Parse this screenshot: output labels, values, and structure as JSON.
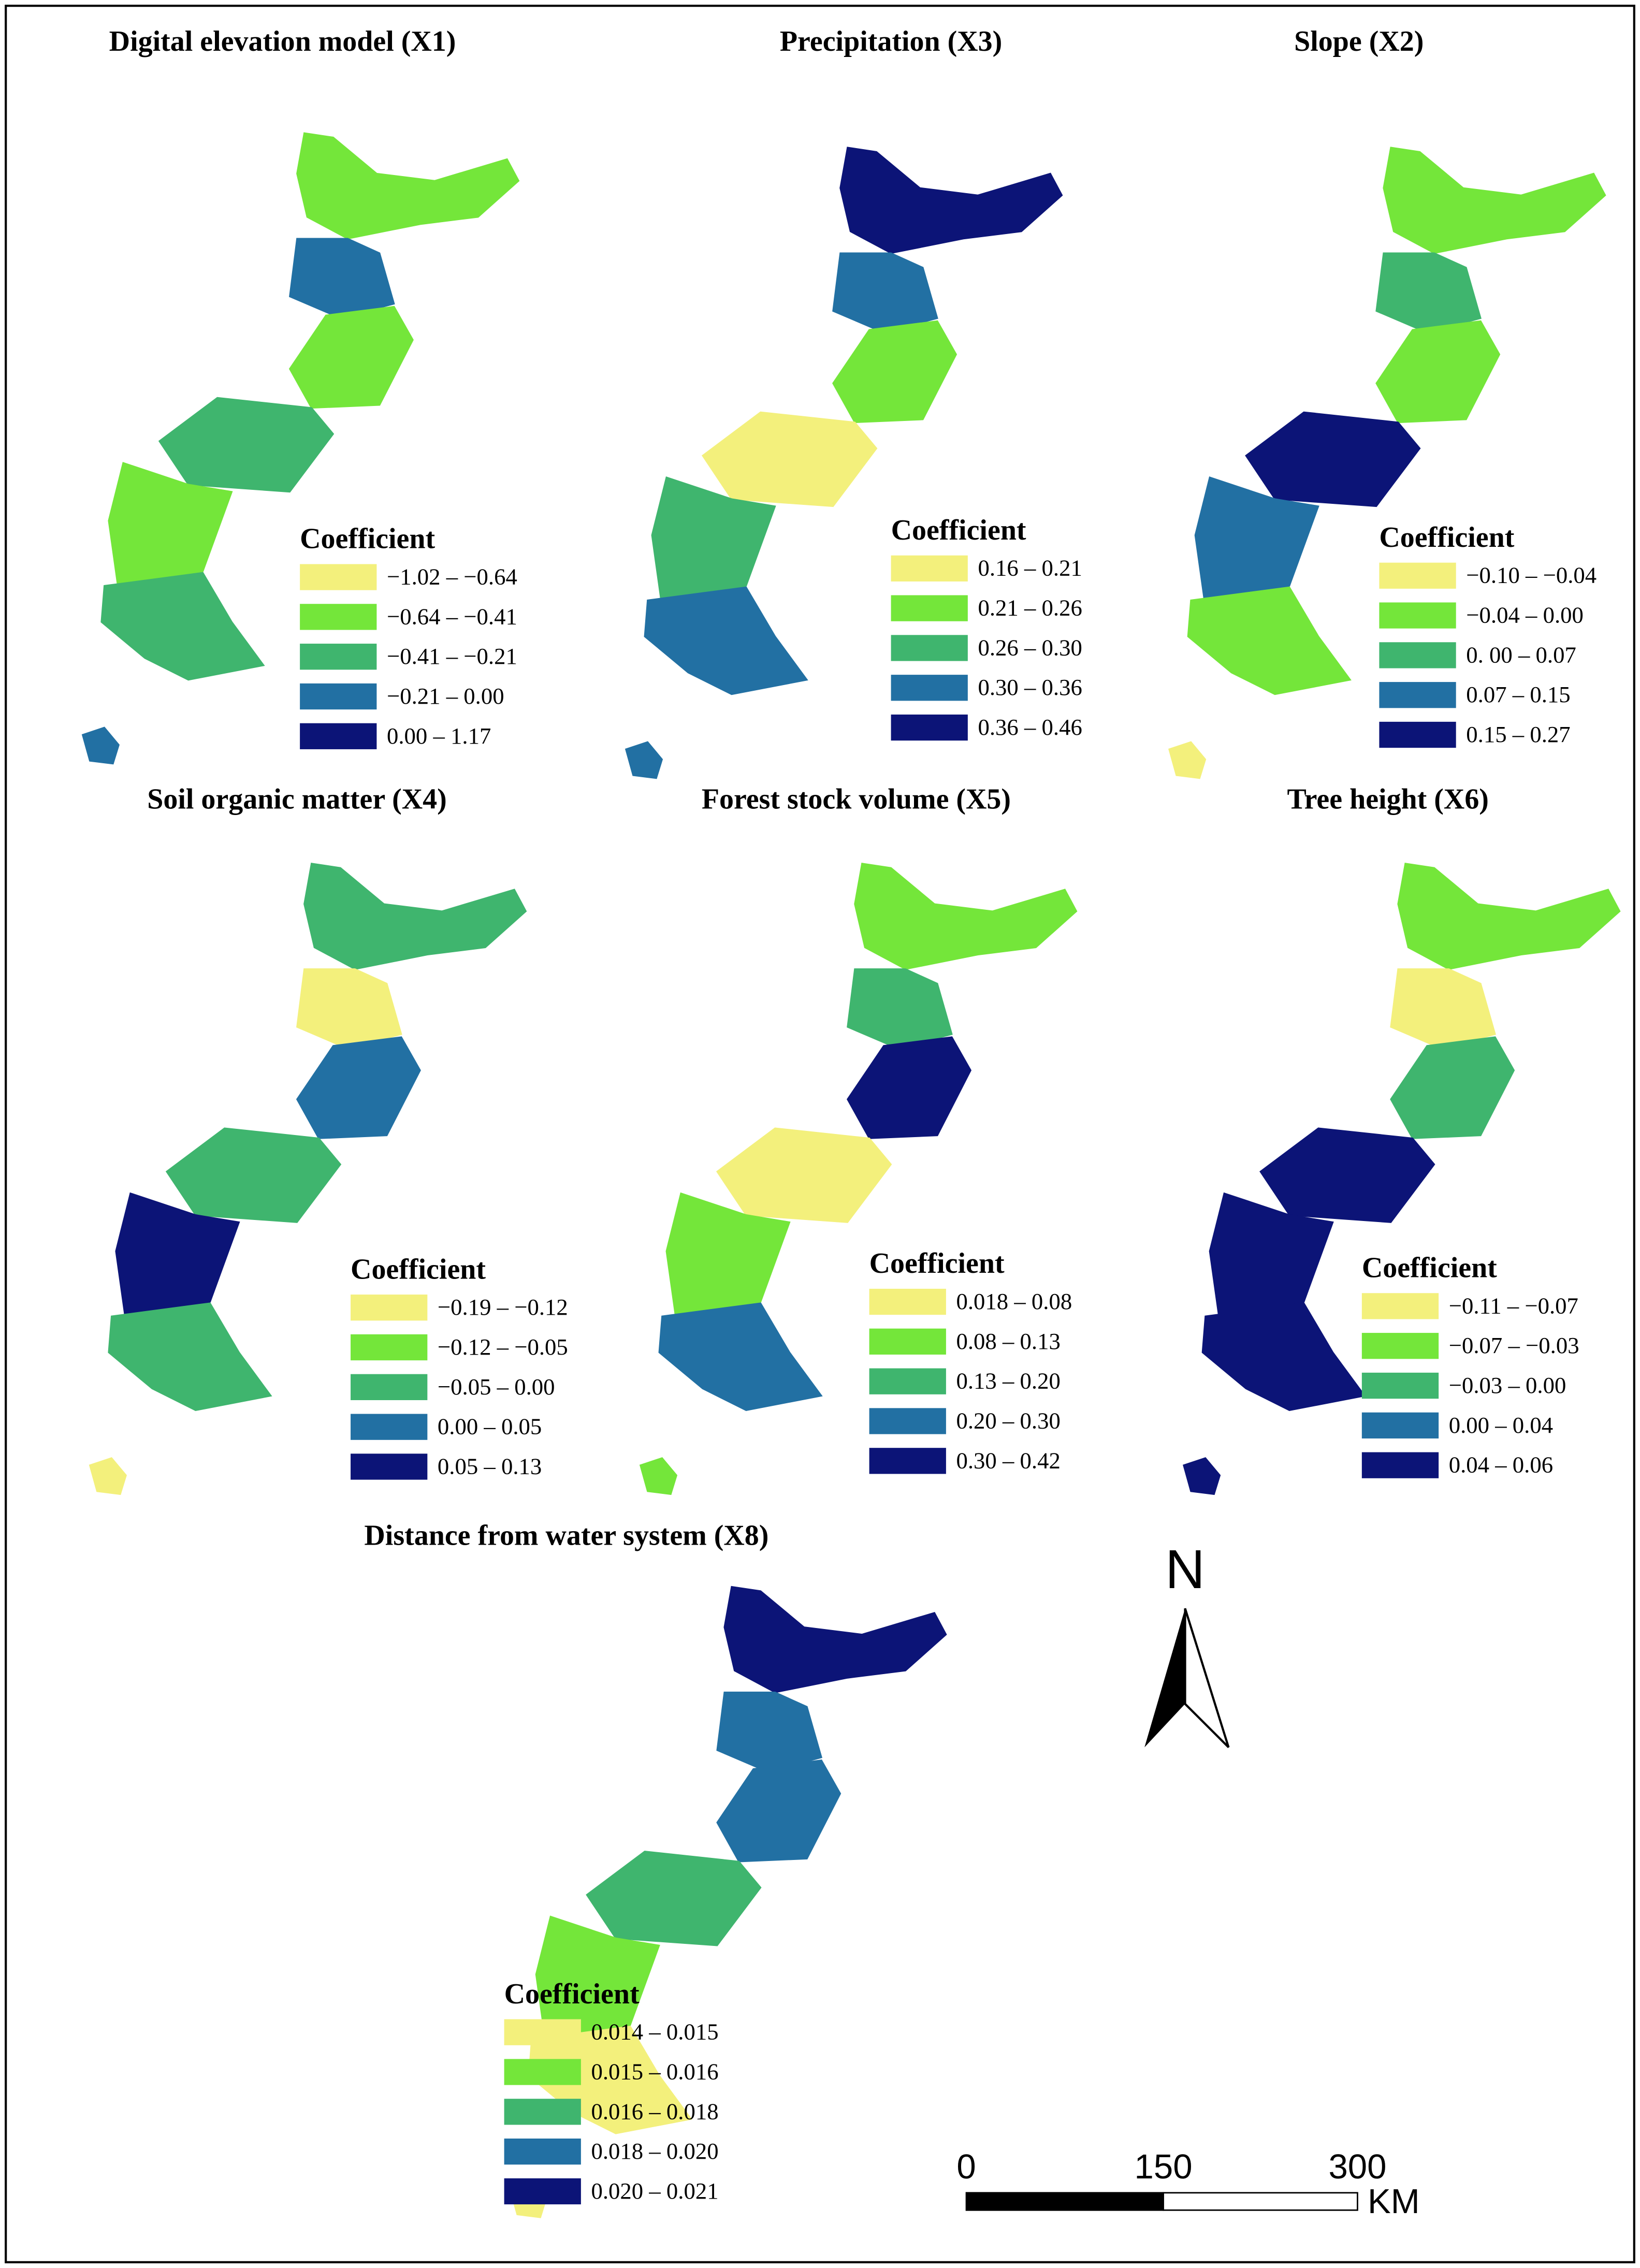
{
  "panels": [
    {
      "title": "Digital elevation model (X1)",
      "legend_title": "Coefficient",
      "legend": [
        {
          "label": "−1.02 – −0.64",
          "color": "#f3f07c"
        },
        {
          "label": "−0.64 – −0.41",
          "color": "#74e63a"
        },
        {
          "label": "−0.41 – −0.21",
          "color": "#3fb56e"
        },
        {
          "label": "−0.21 – 0.00",
          "color": "#2270a3"
        },
        {
          "label": "0.00 – 1.17",
          "color": "#0c1477"
        }
      ]
    },
    {
      "title": "Precipitation (X3)",
      "legend_title": "Coefficient",
      "legend": [
        {
          "label": "0.16 – 0.21",
          "color": "#f3f07c"
        },
        {
          "label": "0.21 – 0.26",
          "color": "#74e63a"
        },
        {
          "label": "0.26 – 0.30",
          "color": "#3fb56e"
        },
        {
          "label": "0.30 – 0.36",
          "color": "#2270a3"
        },
        {
          "label": "0.36 – 0.46",
          "color": "#0c1477"
        }
      ]
    },
    {
      "title": "Slope (X2)",
      "legend_title": "Coefficient",
      "legend": [
        {
          "label": "−0.10 – −0.04",
          "color": "#f3f07c"
        },
        {
          "label": "−0.04 – 0.00",
          "color": "#74e63a"
        },
        {
          "label": "0. 00 – 0.07",
          "color": "#3fb56e"
        },
        {
          "label": "0.07 – 0.15",
          "color": "#2270a3"
        },
        {
          "label": "0.15 – 0.27",
          "color": "#0c1477"
        }
      ]
    },
    {
      "title": "Soil organic matter (X4)",
      "legend_title": "Coefficient",
      "legend": [
        {
          "label": "−0.19 – −0.12",
          "color": "#f3f07c"
        },
        {
          "label": "−0.12 – −0.05",
          "color": "#74e63a"
        },
        {
          "label": "−0.05 – 0.00",
          "color": "#3fb56e"
        },
        {
          "label": "0.00 – 0.05",
          "color": "#2270a3"
        },
        {
          "label": "0.05 – 0.13",
          "color": "#0c1477"
        }
      ]
    },
    {
      "title": "Forest stock volume (X5)",
      "legend_title": "Coefficient",
      "legend": [
        {
          "label": "0.018 – 0.08",
          "color": "#f3f07c"
        },
        {
          "label": "0.08 – 0.13",
          "color": "#74e63a"
        },
        {
          "label": "0.13 – 0.20",
          "color": "#3fb56e"
        },
        {
          "label": "0.20 – 0.30",
          "color": "#2270a3"
        },
        {
          "label": "0.30 – 0.42",
          "color": "#0c1477"
        }
      ]
    },
    {
      "title": "Tree height (X6)",
      "legend_title": "Coefficient",
      "legend": [
        {
          "label": "−0.11 – −0.07",
          "color": "#f3f07c"
        },
        {
          "label": "−0.07 – −0.03",
          "color": "#74e63a"
        },
        {
          "label": "−0.03 – 0.00",
          "color": "#3fb56e"
        },
        {
          "label": "0.00 – 0.04",
          "color": "#2270a3"
        },
        {
          "label": "0.04 – 0.06",
          "color": "#0c1477"
        }
      ]
    },
    {
      "title": "Distance from water system (X8)",
      "legend_title": "Coefficient",
      "legend": [
        {
          "label": "0.014 – 0.015",
          "color": "#f3f07c"
        },
        {
          "label": "0.015 – 0.016",
          "color": "#74e63a"
        },
        {
          "label": "0.016 – 0.018",
          "color": "#3fb56e"
        },
        {
          "label": "0.018 – 0.020",
          "color": "#2270a3"
        },
        {
          "label": "0.020 – 0.021",
          "color": "#0c1477"
        }
      ]
    }
  ],
  "north": "N",
  "scale_bar": {
    "labels": [
      "0",
      "150",
      "300"
    ],
    "unit": "KM"
  }
}
